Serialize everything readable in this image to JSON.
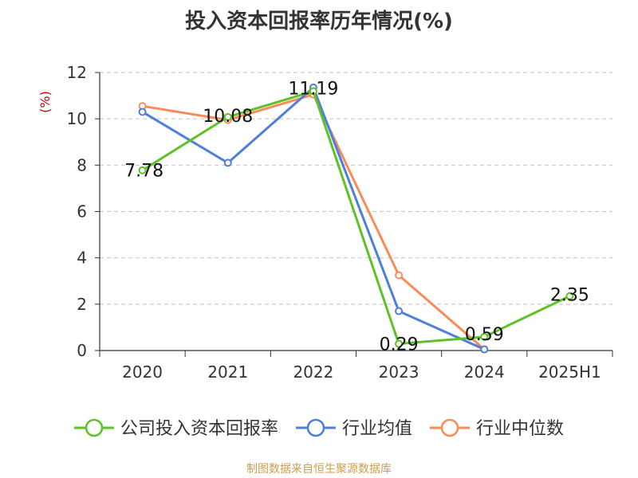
{
  "chart_data": {
    "type": "line",
    "title": "投入资本回报率历年情况(%)",
    "ylabel": "(%)",
    "xlabel": "",
    "categories": [
      "2020",
      "2021",
      "2022",
      "2023",
      "2024",
      "2025H1"
    ],
    "ylim": [
      0,
      12
    ],
    "yticks": [
      0,
      2,
      4,
      6,
      8,
      10,
      12
    ],
    "grid": true,
    "legend_position": "bottom",
    "series": [
      {
        "name": "公司投入资本回报率",
        "color": "#5ec226",
        "values": [
          7.78,
          10.08,
          11.19,
          0.29,
          0.59,
          2.35
        ],
        "labels": [
          "7.78",
          "10.08",
          "11.19",
          "0.29",
          "0.59",
          "2.35"
        ]
      },
      {
        "name": "行业均值",
        "color": "#4e7fdb",
        "values": [
          10.3,
          8.1,
          11.35,
          1.7,
          0.05,
          null
        ]
      },
      {
        "name": "行业中位数",
        "color": "#f68c5a",
        "values": [
          10.55,
          9.95,
          11.05,
          3.25,
          0.05,
          null
        ]
      }
    ]
  },
  "footer": {
    "source": "制图数据来自恒生聚源数据库"
  }
}
